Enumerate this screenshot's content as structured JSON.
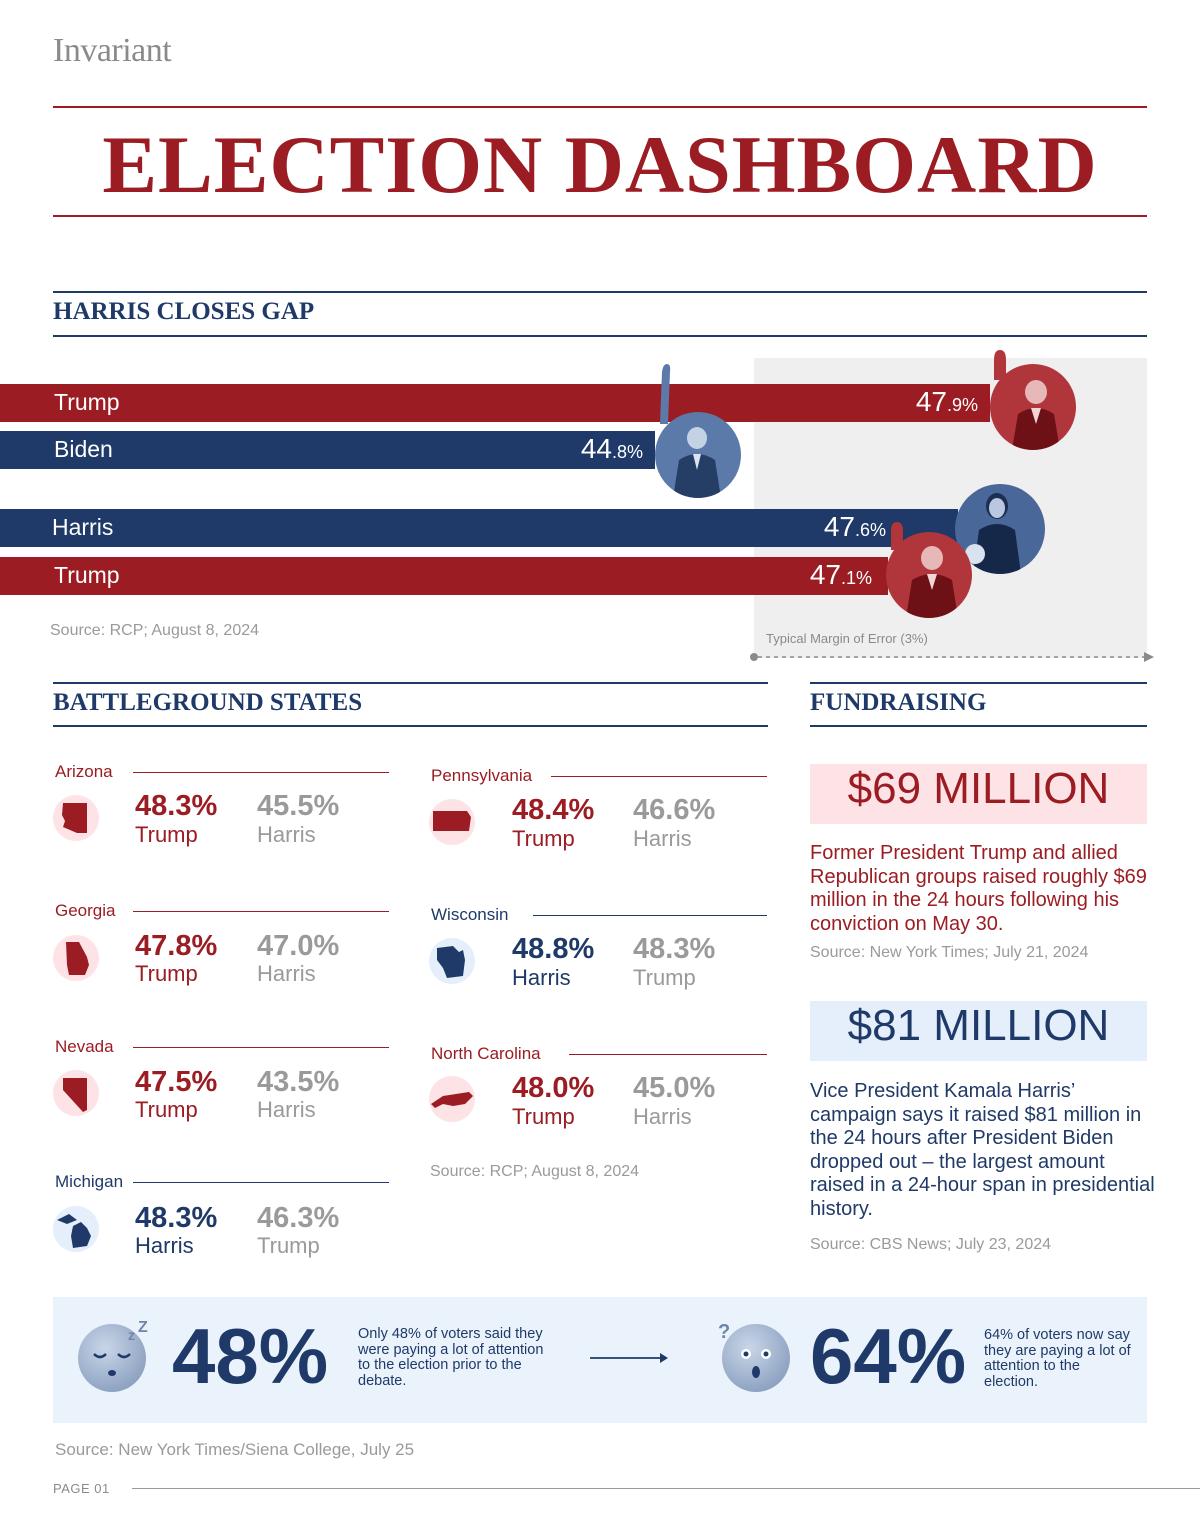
{
  "header": {
    "logo": "Invariant",
    "title": "ELECTION DASHBOARD"
  },
  "gap_section": {
    "title": "HARRIS CLOSES GAP",
    "source": "Source: RCP; August 8, 2024",
    "moe_label": "Typical Margin of Error (3%)",
    "matchups": [
      {
        "bars": [
          {
            "name": "Trump",
            "value": 47.9,
            "int": "47",
            "dec": ".9%",
            "color": "#9b1c22"
          },
          {
            "name": "Biden",
            "value": 44.8,
            "int": "44",
            "dec": ".8%",
            "color": "#1f3a68"
          }
        ]
      },
      {
        "bars": [
          {
            "name": "Harris",
            "value": 47.6,
            "int": "47",
            "dec": ".6%",
            "color": "#1f3a68"
          },
          {
            "name": "Trump",
            "value": 47.1,
            "int": "47",
            "dec": ".1%",
            "color": "#9b1c22"
          }
        ]
      }
    ]
  },
  "battleground": {
    "title": "BATTLEGROUND STATES",
    "source": "Source: RCP; August 8, 2024",
    "states": [
      {
        "name": "Arizona",
        "lead_pct": "48.3%",
        "lead_name": "Trump",
        "trail_pct": "45.5%",
        "trail_name": "Harris",
        "party": "red",
        "icon": "arizona-map-icon"
      },
      {
        "name": "Georgia",
        "lead_pct": "47.8%",
        "lead_name": "Trump",
        "trail_pct": "47.0%",
        "trail_name": "Harris",
        "party": "red",
        "icon": "georgia-map-icon"
      },
      {
        "name": "Nevada",
        "lead_pct": "47.5%",
        "lead_name": "Trump",
        "trail_pct": "43.5%",
        "trail_name": "Harris",
        "party": "red",
        "icon": "nevada-map-icon"
      },
      {
        "name": "Michigan",
        "lead_pct": "48.3%",
        "lead_name": "Harris",
        "trail_pct": "46.3%",
        "trail_name": "Trump",
        "party": "blue",
        "icon": "michigan-map-icon"
      },
      {
        "name": "Pennsylvania",
        "lead_pct": "48.4%",
        "lead_name": "Trump",
        "trail_pct": "46.6%",
        "trail_name": "Harris",
        "party": "red",
        "icon": "pennsylvania-map-icon"
      },
      {
        "name": "Wisconsin",
        "lead_pct": "48.8%",
        "lead_name": "Harris",
        "trail_pct": "48.3%",
        "trail_name": "Trump",
        "party": "blue",
        "icon": "wisconsin-map-icon"
      },
      {
        "name": "North Carolina",
        "lead_pct": "48.0%",
        "lead_name": "Trump",
        "trail_pct": "45.0%",
        "trail_name": "Harris",
        "party": "red",
        "icon": "north-carolina-map-icon"
      }
    ]
  },
  "fundraising": {
    "title": "FUNDRAISING",
    "items": [
      {
        "amount": "$69 MILLION",
        "text": "Former President Trump and allied Republican groups raised roughly $69 million in the 24 hours following his conviction on May 30.",
        "source": "Source: New York Times; July 21, 2024"
      },
      {
        "amount": "$81 MILLION",
        "text": "Vice President Kamala Harris’ campaign says it raised $81 million in the 24 hours after President Biden dropped out – the largest amount raised in a 24-hour span in presidential history.",
        "source": "Source: CBS News; July 23, 2024"
      }
    ]
  },
  "attention": {
    "before_pct": "48%",
    "before_text": "Only 48% of voters said they were paying a lot of attention to the election prior to the debate.",
    "after_pct": "64%",
    "after_text": "64% of voters now say they are paying a lot of attention to the election.",
    "source": "Source: New York Times/Siena College, July 25"
  },
  "footer": {
    "page": "PAGE 01"
  },
  "colors": {
    "red": "#9b1c22",
    "blue": "#1f3a68",
    "gray": "#9a9a9a",
    "light_red": "#fde3e5",
    "light_blue": "#e4effb"
  }
}
